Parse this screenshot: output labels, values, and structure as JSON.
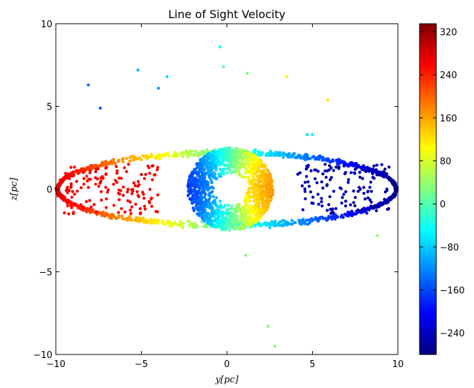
{
  "chart_data": {
    "type": "scatter",
    "title": "Line of Sight Velocity",
    "xlabel": "y[pc]",
    "ylabel": "z[pc]",
    "xlim": [
      -10,
      10
    ],
    "ylim": [
      -10,
      10
    ],
    "xticks": [
      "−10",
      "−5",
      "0",
      "5",
      "10"
    ],
    "xtick_values": [
      -10,
      -5,
      0,
      5,
      10
    ],
    "yticks": [
      "−10",
      "−5",
      "0",
      "5",
      "10"
    ],
    "ytick_values": [
      -10,
      -5,
      0,
      5,
      10
    ],
    "grid": false,
    "colorbar": {
      "colormap": "jet",
      "vmin": -280,
      "vmax": 335,
      "ticks": [
        "320",
        "240",
        "160",
        "80",
        "0",
        "−80",
        "−160",
        "−240"
      ],
      "tick_values": [
        320,
        240,
        160,
        80,
        0,
        -80,
        -160,
        -240
      ],
      "colors": [
        "#00007f",
        "#0000ff",
        "#007fff",
        "#00ffff",
        "#7fff7f",
        "#ffff00",
        "#ff7f00",
        "#ff0000",
        "#7f0000"
      ]
    },
    "structures": [
      {
        "name": "outer-ring",
        "center": [
          0,
          0
        ],
        "x_radius": 9.9,
        "z_radius": 2.2,
        "thickness": 0.5,
        "velocity_amplitude": 290,
        "count": 1300
      },
      {
        "name": "inner-ring",
        "center": [
          0.2,
          0
        ],
        "radius_inner": 0.9,
        "radius_outer": 2.5,
        "velocity_amplitude": 170,
        "count": 1500
      },
      {
        "name": "interior-left",
        "x_range": [
          -9.5,
          -4
        ],
        "z_range": [
          -1.5,
          1.5
        ],
        "velocity": 260,
        "count": 140
      },
      {
        "name": "interior-right",
        "x_range": [
          4,
          9.5
        ],
        "z_range": [
          -1.5,
          1.5
        ],
        "velocity": -250,
        "count": 140
      }
    ],
    "outliers": [
      {
        "x": -8.1,
        "z": 6.3,
        "v": -130
      },
      {
        "x": -7.4,
        "z": 4.9,
        "v": -150
      },
      {
        "x": -5.2,
        "z": 7.2,
        "v": -90
      },
      {
        "x": -4.0,
        "z": 6.1,
        "v": -110
      },
      {
        "x": -3.5,
        "z": 6.8,
        "v": -70
      },
      {
        "x": -0.4,
        "z": 8.6,
        "v": -40
      },
      {
        "x": -0.2,
        "z": 7.4,
        "v": 10
      },
      {
        "x": 1.2,
        "z": 7.0,
        "v": 20
      },
      {
        "x": 3.5,
        "z": 6.8,
        "v": 110
      },
      {
        "x": 5.9,
        "z": 5.4,
        "v": 120
      },
      {
        "x": 4.7,
        "z": 3.3,
        "v": -70
      },
      {
        "x": 5.0,
        "z": 3.3,
        "v": -60
      },
      {
        "x": 8.8,
        "z": -2.8,
        "v": 40
      },
      {
        "x": 1.1,
        "z": -4.0,
        "v": 30
      },
      {
        "x": 2.4,
        "z": -8.3,
        "v": 30
      },
      {
        "x": 2.8,
        "z": -9.5,
        "v": 20
      }
    ]
  }
}
